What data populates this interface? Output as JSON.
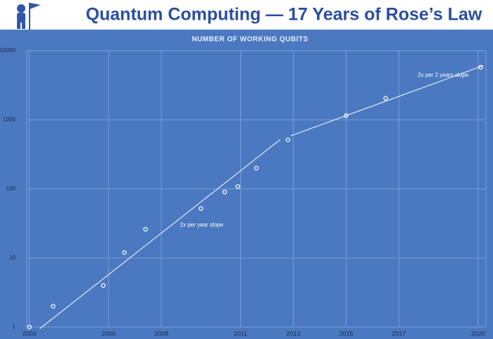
{
  "chart_data": {
    "type": "scatter",
    "title": "Quantum Computing — 17 Years of Rose’s Law",
    "subtitle": "NUMBER OF WORKING QUBITS",
    "x": [
      2003,
      2003.9,
      2005.8,
      2006.6,
      2007.4,
      2009.5,
      2010.4,
      2010.9,
      2011.6,
      2012.8,
      2015.0,
      2016.5,
      2020.1
    ],
    "values": [
      1,
      2,
      4,
      12,
      26,
      52,
      90,
      108,
      200,
      512,
      1152,
      2048,
      5760
    ],
    "color": "#ffffff",
    "xlim": [
      2002.9,
      2020.3
    ],
    "xticks": [
      2003,
      2006,
      2008,
      2011,
      2013,
      2015,
      2017,
      2020
    ],
    "ylim": [
      1,
      10000
    ],
    "yticks": [
      1,
      10,
      100,
      1000,
      10000
    ],
    "log_y": true,
    "grid": true,
    "trend_lines": [
      {
        "label": "2x per year slope",
        "x": [
          2003.4,
          2012.5
        ],
        "values": [
          0.95,
          516
        ]
      },
      {
        "label": "2x per 2 years slope",
        "x": [
          2012.9,
          2020.2
        ],
        "values": [
          585,
          6100
        ]
      }
    ]
  }
}
